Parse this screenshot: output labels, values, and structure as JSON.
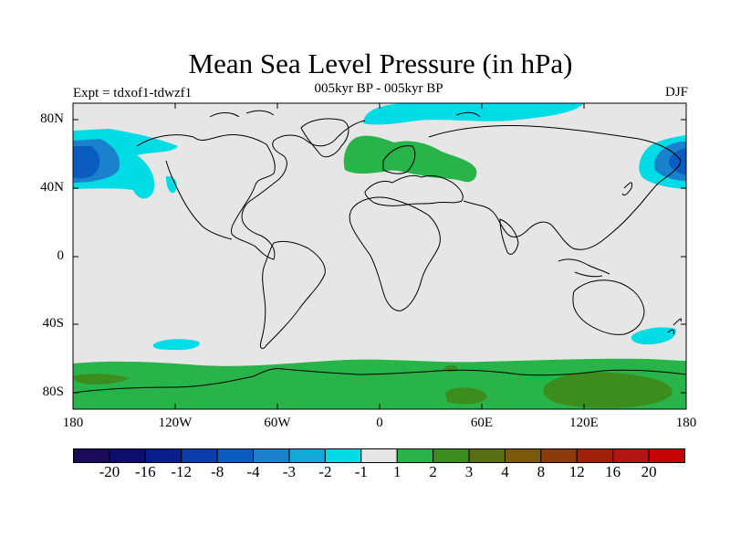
{
  "title": "Mean Sea Level Pressure (in hPa)",
  "subtitle": "005kyr BP - 005kyr BP",
  "left_label": "Expt = tdxof1-tdwzf1",
  "right_label": "DJF",
  "lat_ticks": [
    "80N",
    "40N",
    "0",
    "40S",
    "80S"
  ],
  "lon_ticks": [
    "180",
    "120W",
    "60W",
    "0",
    "60E",
    "120E",
    "180"
  ],
  "colorbar": {
    "colors": [
      "#1a0a5a",
      "#0d0d6e",
      "#0a1f8c",
      "#0a3caa",
      "#0a5cc0",
      "#1a82cc",
      "#14a8d8",
      "#00dce6",
      "#e6e6e6",
      "#28b448",
      "#3c8c1e",
      "#5a6e14",
      "#7a5a0a",
      "#8c3c0a",
      "#a0200a",
      "#b41414",
      "#c80000"
    ],
    "labels": [
      "-20",
      "-16",
      "-12",
      "-8",
      "-4",
      "-3",
      "-2",
      "-1",
      "1",
      "2",
      "3",
      "4",
      "8",
      "12",
      "16",
      "20"
    ]
  },
  "colors": {
    "background_field": "#e6e6e6",
    "negative_light": "#00dce6",
    "negative_mid": "#1a82cc",
    "negative_dark": "#0a5cc0",
    "positive_light": "#28b448",
    "positive_dark": "#5a6e14",
    "coast": "#000000"
  }
}
